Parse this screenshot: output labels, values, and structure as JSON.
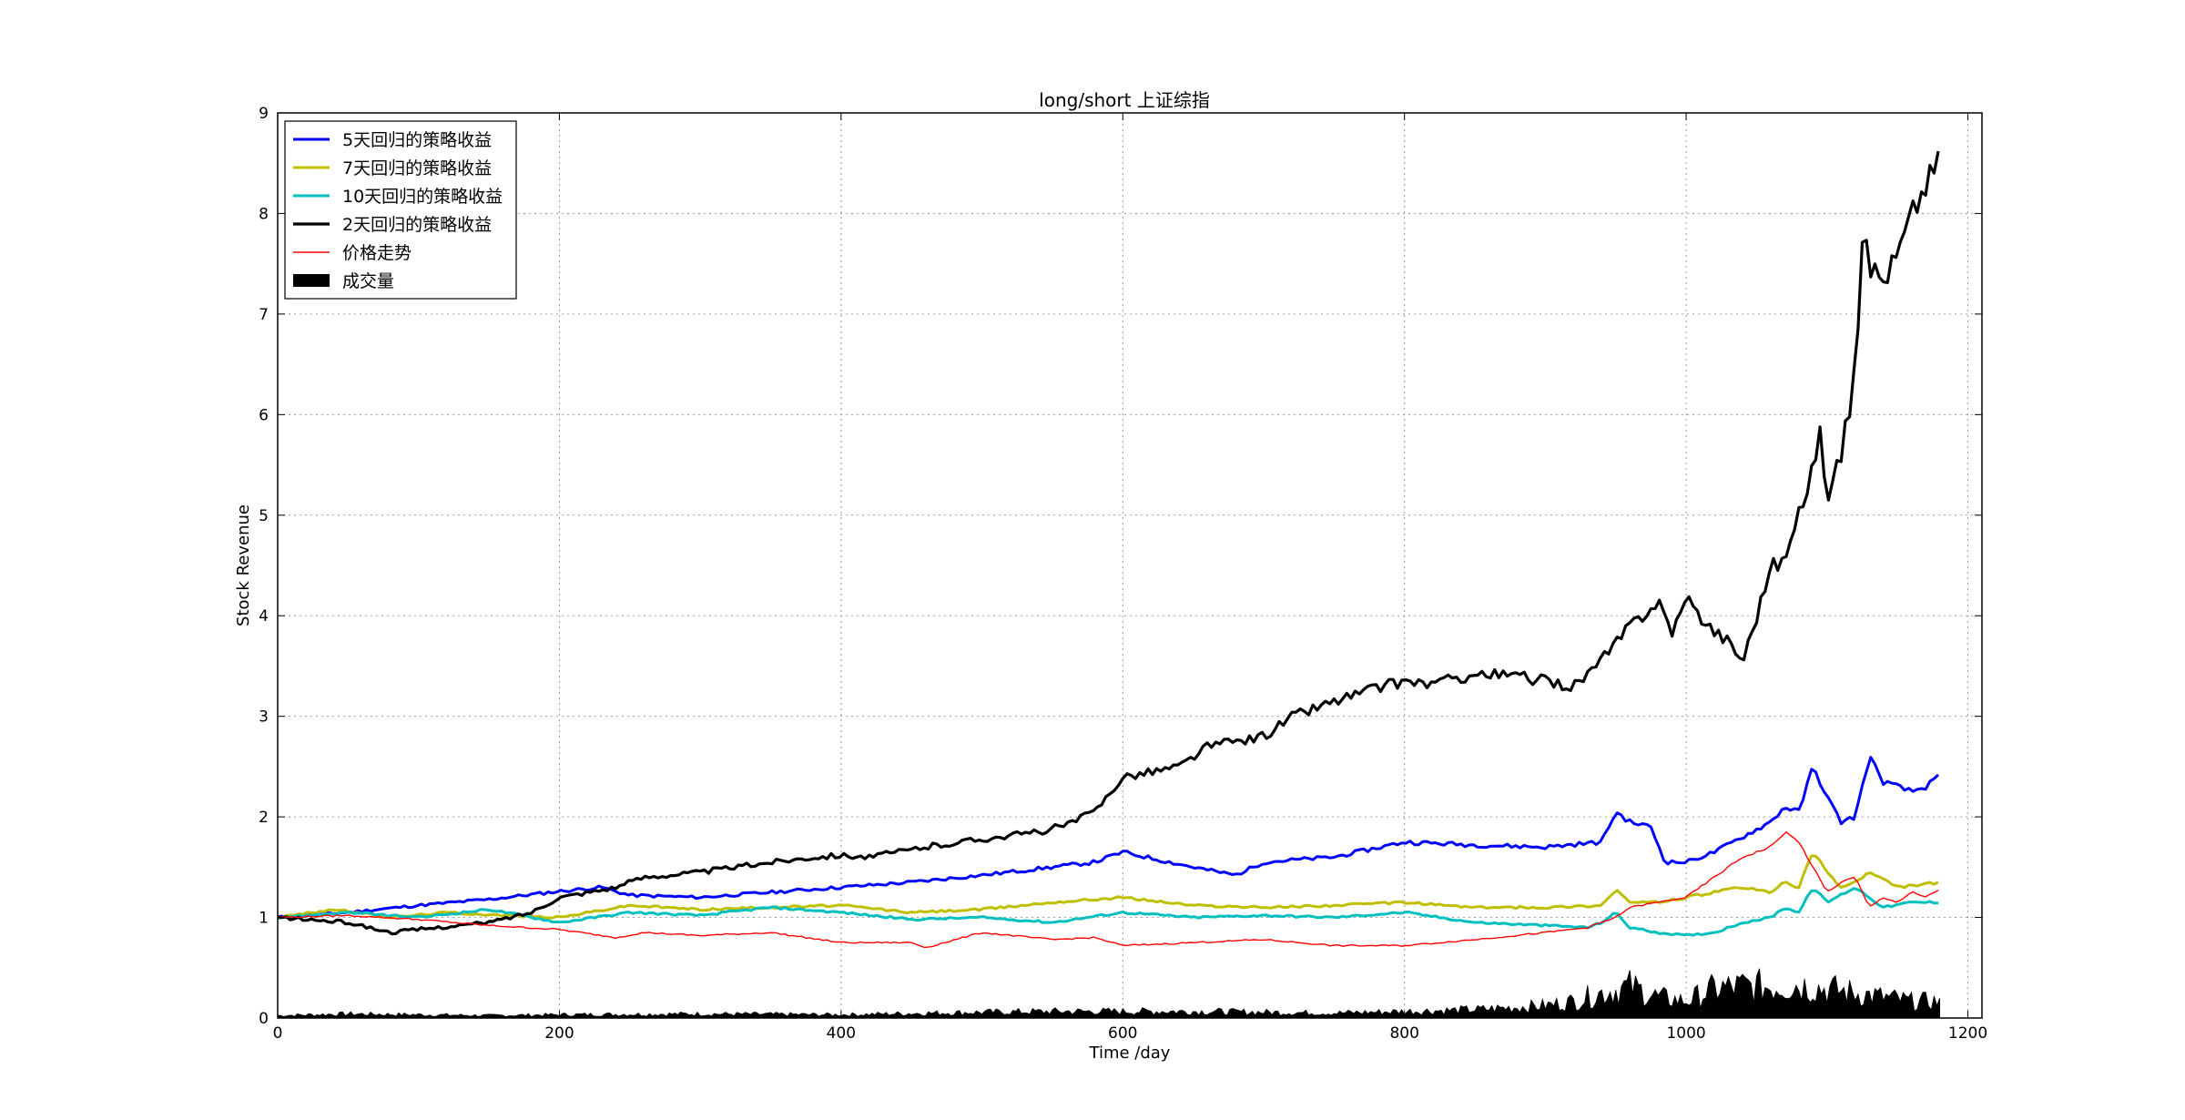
{
  "chart_data": {
    "type": "line",
    "title": "long/short 上证综指",
    "xlabel": "Time /day",
    "ylabel": "Stock Revenue",
    "xlim": [
      0,
      1210
    ],
    "ylim": [
      0,
      9
    ],
    "xticks": [
      0,
      200,
      400,
      600,
      800,
      1000,
      1200
    ],
    "yticks": [
      0,
      1,
      2,
      3,
      4,
      5,
      6,
      7,
      8,
      9
    ],
    "grid": true,
    "legend_position": "top-left",
    "series": [
      {
        "name": "5天回归的策略收益",
        "color": "#0000ff",
        "x": [
          0,
          50,
          100,
          150,
          200,
          230,
          250,
          300,
          350,
          400,
          450,
          500,
          550,
          580,
          600,
          650,
          680,
          700,
          750,
          800,
          850,
          900,
          940,
          950,
          960,
          975,
          985,
          1000,
          1020,
          1040,
          1060,
          1070,
          1080,
          1090,
          1100,
          1110,
          1120,
          1130,
          1140,
          1150,
          1160,
          1170,
          1180
        ],
        "y": [
          1.0,
          1.05,
          1.12,
          1.18,
          1.26,
          1.3,
          1.22,
          1.2,
          1.25,
          1.3,
          1.35,
          1.42,
          1.5,
          1.55,
          1.65,
          1.5,
          1.42,
          1.55,
          1.6,
          1.75,
          1.72,
          1.7,
          1.75,
          2.05,
          1.95,
          1.9,
          1.55,
          1.55,
          1.65,
          1.8,
          1.95,
          2.1,
          2.05,
          2.5,
          2.2,
          1.95,
          2.0,
          2.6,
          2.35,
          2.3,
          2.25,
          2.3,
          2.4
        ]
      },
      {
        "name": "7天回归的策略收益",
        "color": "#bfbf00",
        "x": [
          0,
          40,
          80,
          120,
          160,
          200,
          250,
          300,
          350,
          400,
          450,
          500,
          550,
          600,
          650,
          700,
          750,
          800,
          850,
          900,
          940,
          950,
          960,
          980,
          1000,
          1020,
          1040,
          1060,
          1070,
          1080,
          1090,
          1100,
          1110,
          1120,
          1130,
          1150,
          1180
        ],
        "y": [
          1.0,
          1.08,
          1.0,
          1.05,
          1.02,
          1.0,
          1.12,
          1.08,
          1.1,
          1.12,
          1.05,
          1.08,
          1.15,
          1.2,
          1.12,
          1.1,
          1.12,
          1.15,
          1.1,
          1.1,
          1.12,
          1.28,
          1.15,
          1.15,
          1.2,
          1.25,
          1.3,
          1.25,
          1.35,
          1.3,
          1.65,
          1.45,
          1.3,
          1.35,
          1.45,
          1.3,
          1.35
        ]
      },
      {
        "name": "10天回归的策略收益",
        "color": "#00bfbf",
        "x": [
          0,
          50,
          100,
          150,
          200,
          250,
          300,
          350,
          400,
          450,
          500,
          550,
          600,
          650,
          700,
          750,
          800,
          850,
          900,
          930,
          940,
          950,
          960,
          980,
          1000,
          1020,
          1040,
          1060,
          1070,
          1080,
          1090,
          1100,
          1120,
          1140,
          1160,
          1180
        ],
        "y": [
          1.0,
          1.05,
          1.0,
          1.08,
          0.95,
          1.05,
          1.02,
          1.1,
          1.05,
          0.98,
          1.0,
          0.95,
          1.05,
          1.0,
          1.02,
          1.0,
          1.05,
          0.95,
          0.92,
          0.9,
          0.95,
          1.05,
          0.9,
          0.85,
          0.82,
          0.85,
          0.95,
          1.0,
          1.1,
          1.05,
          1.3,
          1.15,
          1.3,
          1.1,
          1.15,
          1.15
        ]
      },
      {
        "name": "2天回归的策略收益",
        "color": "#000000",
        "x": [
          0,
          50,
          80,
          100,
          150,
          180,
          200,
          240,
          260,
          300,
          350,
          380,
          400,
          420,
          460,
          500,
          540,
          560,
          580,
          600,
          640,
          660,
          700,
          720,
          750,
          780,
          800,
          820,
          850,
          880,
          920,
          940,
          960,
          980,
          990,
          1000,
          1010,
          1020,
          1030,
          1040,
          1050,
          1060,
          1070,
          1080,
          1090,
          1095,
          1100,
          1110,
          1120,
          1125,
          1130,
          1140,
          1150,
          1160,
          1170,
          1180
        ],
        "y": [
          1.0,
          0.95,
          0.85,
          0.88,
          0.95,
          1.05,
          1.2,
          1.3,
          1.4,
          1.45,
          1.55,
          1.6,
          1.62,
          1.6,
          1.7,
          1.78,
          1.85,
          1.92,
          2.05,
          2.4,
          2.5,
          2.7,
          2.8,
          3.0,
          3.15,
          3.28,
          3.35,
          3.32,
          3.42,
          3.4,
          3.3,
          3.55,
          3.9,
          4.15,
          3.85,
          4.15,
          4.0,
          3.85,
          3.75,
          3.55,
          4.0,
          4.5,
          4.55,
          5.0,
          5.5,
          5.8,
          5.2,
          5.6,
          6.4,
          7.8,
          7.5,
          7.35,
          7.6,
          8.0,
          8.3,
          8.55
        ]
      },
      {
        "name": "价格走势",
        "color": "#ff0000",
        "x": [
          0,
          50,
          100,
          150,
          200,
          240,
          260,
          300,
          350,
          400,
          450,
          460,
          500,
          550,
          580,
          600,
          650,
          700,
          750,
          800,
          850,
          900,
          930,
          950,
          960,
          980,
          1000,
          1020,
          1040,
          1060,
          1070,
          1080,
          1090,
          1100,
          1110,
          1120,
          1130,
          1140,
          1150,
          1160,
          1170,
          1180
        ],
        "y": [
          1.0,
          1.02,
          0.98,
          0.92,
          0.88,
          0.8,
          0.85,
          0.82,
          0.85,
          0.75,
          0.75,
          0.7,
          0.85,
          0.78,
          0.8,
          0.72,
          0.75,
          0.78,
          0.72,
          0.72,
          0.78,
          0.85,
          0.9,
          1.0,
          1.1,
          1.15,
          1.2,
          1.4,
          1.6,
          1.7,
          1.85,
          1.75,
          1.5,
          1.25,
          1.35,
          1.4,
          1.1,
          1.2,
          1.15,
          1.25,
          1.2,
          1.28
        ]
      }
    ],
    "volume": {
      "name": "成交量",
      "color": "#000000",
      "x": [
        0,
        50,
        100,
        150,
        200,
        300,
        400,
        500,
        550,
        600,
        650,
        700,
        750,
        800,
        850,
        900,
        920,
        940,
        960,
        980,
        1000,
        1020,
        1040,
        1060,
        1080,
        1100,
        1120,
        1140,
        1160,
        1180
      ],
      "y": [
        0.03,
        0.05,
        0.04,
        0.03,
        0.04,
        0.05,
        0.04,
        0.07,
        0.08,
        0.08,
        0.08,
        0.07,
        0.06,
        0.08,
        0.1,
        0.15,
        0.2,
        0.3,
        0.38,
        0.25,
        0.2,
        0.35,
        0.38,
        0.38,
        0.4,
        0.35,
        0.3,
        0.25,
        0.2,
        0.2
      ]
    }
  }
}
